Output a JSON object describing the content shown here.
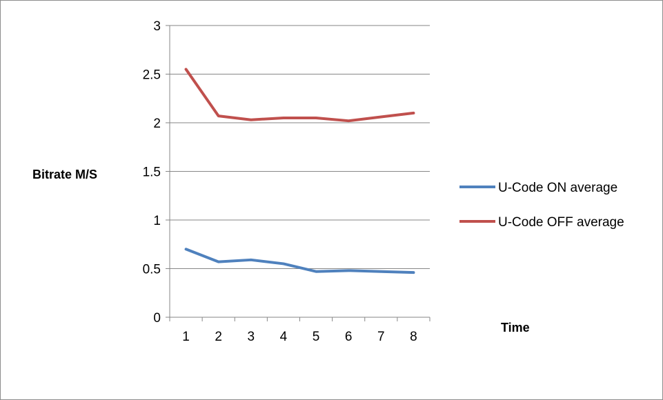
{
  "chart_data": {
    "type": "line",
    "title": "",
    "xlabel": "Time",
    "ylabel": "Bitrate M/S",
    "categories": [
      "1",
      "2",
      "3",
      "4",
      "5",
      "6",
      "7",
      "8"
    ],
    "ylim": [
      0,
      3
    ],
    "yticks": [
      "0",
      "0.5",
      "1",
      "1.5",
      "2",
      "2.5",
      "3"
    ],
    "grid": true,
    "legend_position": "right",
    "series": [
      {
        "name": "U-Code ON average",
        "color": "#4f81bd",
        "values": [
          0.7,
          0.57,
          0.59,
          0.55,
          0.47,
          0.48,
          0.47,
          0.46
        ]
      },
      {
        "name": "U-Code OFF average",
        "color": "#c0504d",
        "values": [
          2.55,
          2.07,
          2.03,
          2.05,
          2.05,
          2.02,
          2.06,
          2.1
        ]
      }
    ]
  }
}
